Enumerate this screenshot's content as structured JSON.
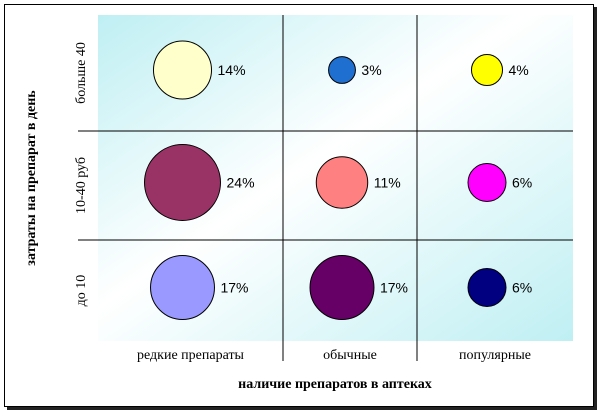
{
  "chart_data": {
    "type": "bubble",
    "xlabel": "наличие препаратов в аптеках",
    "ylabel": "затраты на препарат в день",
    "x_categories": [
      "редкие препараты",
      "обычные",
      "популярные"
    ],
    "y_categories": [
      "до 10",
      "10-40 руб",
      "больше 40"
    ],
    "grid": true,
    "points": [
      {
        "x": "редкие препараты",
        "y": "больше 40",
        "value": 14,
        "label": "14%",
        "color": "#ffffcc"
      },
      {
        "x": "обычные",
        "y": "больше 40",
        "value": 3,
        "label": "3%",
        "color": "#1f6fd0"
      },
      {
        "x": "популярные",
        "y": "больше 40",
        "value": 4,
        "label": "4%",
        "color": "#ffff00"
      },
      {
        "x": "редкие препараты",
        "y": "10-40 руб",
        "value": 24,
        "label": "24%",
        "color": "#993366"
      },
      {
        "x": "обычные",
        "y": "10-40 руб",
        "value": 11,
        "label": "11%",
        "color": "#ff8080"
      },
      {
        "x": "популярные",
        "y": "10-40 руб",
        "value": 6,
        "label": "6%",
        "color": "#ff00ff"
      },
      {
        "x": "редкие препараты",
        "y": "до 10",
        "value": 17,
        "label": "17%",
        "color": "#9999ff"
      },
      {
        "x": "обычные",
        "y": "до 10",
        "value": 17,
        "label": "17%",
        "color": "#660066"
      },
      {
        "x": "популярные",
        "y": "до 10",
        "value": 6,
        "label": "6%",
        "color": "#000080"
      }
    ]
  }
}
